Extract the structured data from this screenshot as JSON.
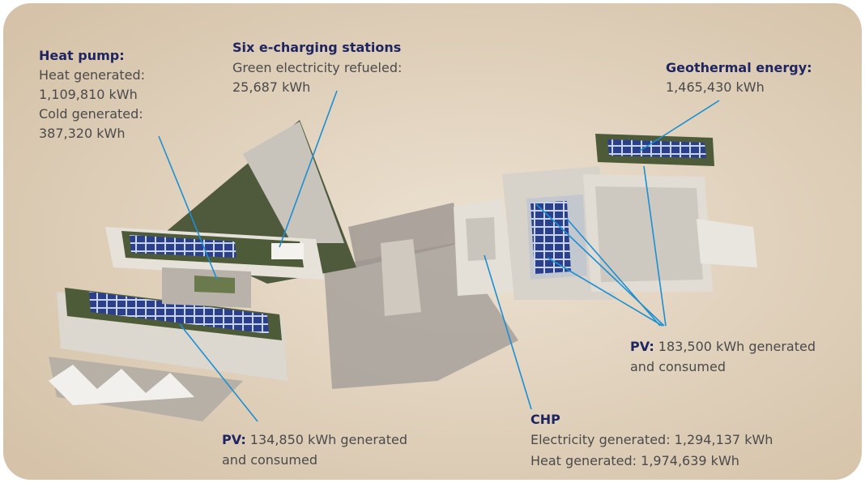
{
  "annotations": [
    {
      "title": "Heat pump:",
      "lines": [
        "Heat generated:",
        "1,109,810 kWh",
        "Cold generated:",
        "387,320 kWh"
      ]
    },
    {
      "title": "Six e-charging stations",
      "lines": [
        "Green electricity refueled:",
        "25,687 kWh"
      ]
    },
    {
      "title": "Geothermal energy:",
      "lines": [
        "1,465,430 kWh"
      ]
    },
    {
      "title": "PV:",
      "lines": [
        "183,500 kWh generated",
        "and consumed"
      ]
    },
    {
      "title": "CHP",
      "lines": [
        "Electricity generated: 1,294,137 kWh",
        "Heat generated: 1,974,639 kWh"
      ]
    },
    {
      "title": "PV:",
      "lines": [
        "134,850 kWh generated",
        "and consumed"
      ]
    }
  ]
}
